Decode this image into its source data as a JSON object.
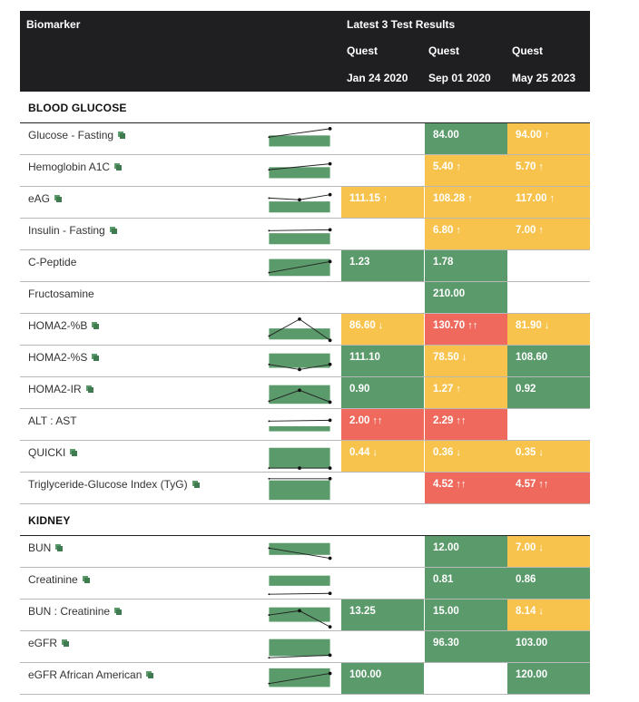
{
  "header": {
    "biomarker_label": "Biomarker",
    "results_label": "Latest 3 Test Results",
    "columns": [
      {
        "lab": "Quest",
        "date": "Jan 24 2020"
      },
      {
        "lab": "Quest",
        "date": "Sep 01 2020"
      },
      {
        "lab": "Quest",
        "date": "May 25 2023"
      }
    ]
  },
  "colors": {
    "normal": "#5a9a6b",
    "borderline": "#f7c34d",
    "out_of_range": "#ef6a5c",
    "header_bg": "#1f1f22"
  },
  "sections": [
    {
      "title": "BLOOD GLUCOSE",
      "rows": [
        {
          "name": "Glucose - Fasting",
          "icon": true,
          "cells": [
            null,
            {
              "v": "84.00",
              "s": "g",
              "a": ""
            },
            {
              "v": "94.00",
              "s": "y",
              "a": "↑"
            }
          ]
        },
        {
          "name": "Hemoglobin A1C",
          "icon": true,
          "cells": [
            null,
            {
              "v": "5.40",
              "s": "y",
              "a": "↑"
            },
            {
              "v": "5.70",
              "s": "y",
              "a": "↑"
            }
          ]
        },
        {
          "name": "eAG",
          "icon": true,
          "cells": [
            {
              "v": "111.15",
              "s": "y",
              "a": "↑"
            },
            {
              "v": "108.28",
              "s": "y",
              "a": "↑"
            },
            {
              "v": "117.00",
              "s": "y",
              "a": "↑"
            }
          ]
        },
        {
          "name": "Insulin - Fasting",
          "icon": true,
          "cells": [
            null,
            {
              "v": "6.80",
              "s": "y",
              "a": "↑"
            },
            {
              "v": "7.00",
              "s": "y",
              "a": "↑"
            }
          ]
        },
        {
          "name": "C-Peptide",
          "icon": false,
          "cells": [
            {
              "v": "1.23",
              "s": "g",
              "a": ""
            },
            {
              "v": "1.78",
              "s": "g",
              "a": ""
            },
            null
          ]
        },
        {
          "name": "Fructosamine",
          "icon": false,
          "cells": [
            null,
            {
              "v": "210.00",
              "s": "g",
              "a": ""
            },
            null
          ]
        },
        {
          "name": "HOMA2-%B",
          "icon": true,
          "cells": [
            {
              "v": "86.60",
              "s": "y",
              "a": "↓"
            },
            {
              "v": "130.70",
              "s": "r",
              "a": "↑↑"
            },
            {
              "v": "81.90",
              "s": "y",
              "a": "↓"
            }
          ]
        },
        {
          "name": "HOMA2-%S",
          "icon": true,
          "cells": [
            {
              "v": "111.10",
              "s": "g",
              "a": ""
            },
            {
              "v": "78.50",
              "s": "y",
              "a": "↓"
            },
            {
              "v": "108.60",
              "s": "g",
              "a": ""
            }
          ]
        },
        {
          "name": "HOMA2-IR",
          "icon": true,
          "cells": [
            {
              "v": "0.90",
              "s": "g",
              "a": ""
            },
            {
              "v": "1.27",
              "s": "y",
              "a": "↑"
            },
            {
              "v": "0.92",
              "s": "g",
              "a": ""
            }
          ]
        },
        {
          "name": "ALT : AST",
          "icon": false,
          "cells": [
            {
              "v": "2.00",
              "s": "r",
              "a": "↑↑"
            },
            {
              "v": "2.29",
              "s": "r",
              "a": "↑↑"
            },
            null
          ]
        },
        {
          "name": "QUICKI",
          "icon": true,
          "cells": [
            {
              "v": "0.44",
              "s": "y",
              "a": "↓"
            },
            {
              "v": "0.36",
              "s": "y",
              "a": "↓"
            },
            {
              "v": "0.35",
              "s": "y",
              "a": "↓"
            }
          ]
        },
        {
          "name": "Triglyceride-Glucose Index (TyG)",
          "icon": true,
          "cells": [
            null,
            {
              "v": "4.52",
              "s": "r",
              "a": "↑↑"
            },
            {
              "v": "4.57",
              "s": "r",
              "a": "↑↑"
            }
          ]
        }
      ]
    },
    {
      "title": "KIDNEY",
      "rows": [
        {
          "name": "BUN",
          "icon": true,
          "cells": [
            null,
            {
              "v": "12.00",
              "s": "g",
              "a": ""
            },
            {
              "v": "7.00",
              "s": "y",
              "a": "↓"
            }
          ]
        },
        {
          "name": "Creatinine",
          "icon": true,
          "cells": [
            null,
            {
              "v": "0.81",
              "s": "g",
              "a": ""
            },
            {
              "v": "0.86",
              "s": "g",
              "a": ""
            }
          ]
        },
        {
          "name": "BUN : Creatinine",
          "icon": true,
          "cells": [
            {
              "v": "13.25",
              "s": "g",
              "a": ""
            },
            {
              "v": "15.00",
              "s": "g",
              "a": ""
            },
            {
              "v": "8.14",
              "s": "y",
              "a": "↓"
            }
          ]
        },
        {
          "name": "eGFR",
          "icon": true,
          "cells": [
            null,
            {
              "v": "96.30",
              "s": "g",
              "a": ""
            },
            {
              "v": "103.00",
              "s": "g",
              "a": ""
            }
          ]
        },
        {
          "name": "eGFR African American",
          "icon": true,
          "cells": [
            {
              "v": "100.00",
              "s": "g",
              "a": ""
            },
            null,
            {
              "v": "120.00",
              "s": "g",
              "a": ""
            }
          ]
        }
      ]
    }
  ]
}
